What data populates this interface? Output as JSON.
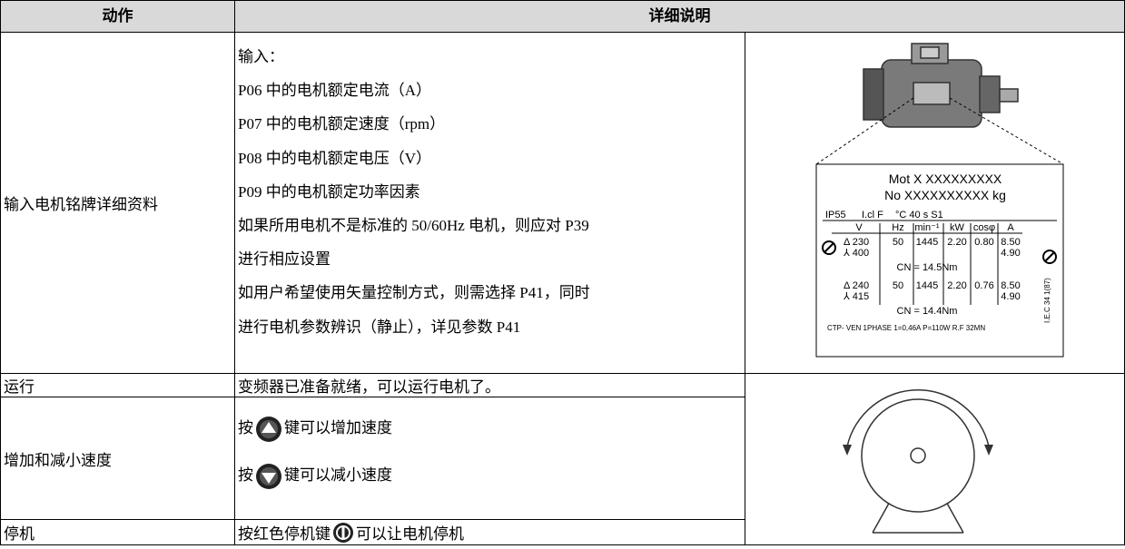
{
  "table": {
    "header": [
      "动作",
      "详细说明"
    ],
    "rows": [
      {
        "action": "输入电机铭牌详细资料",
        "details": [
          "输入：",
          "P06 中的电机额定电流（A）",
          "P07 中的电机额定速度（rpm）",
          "P08 中的电机额定电压（V）",
          "P09 中的电机额定功率因素",
          "如果所用电机不是标准的 50/60Hz 电机，则应对 P39",
          "进行相应设置",
          "如用户希望使用矢量控制方式，则需选择 P41，同时",
          "进行电机参数辨识（静止），详见参数 P41"
        ]
      },
      {
        "action": "运行",
        "details": [
          "变频器已准备就绪，可以运行电机了。"
        ]
      },
      {
        "action": "增加和减小速度",
        "details": [
          {
            "before": "按",
            "after": "键可以增加速度"
          },
          {
            "before": "按",
            "after": "键可以减小速度"
          }
        ]
      },
      {
        "action": "停机",
        "details": [
          {
            "before": "按红色停机键",
            "after": "可以让电机停机"
          }
        ]
      }
    ]
  },
  "nameplate": {
    "lines": [
      "Mot X XXXXXXXXX",
      "No XXXXXXXXXX  kg",
      "IP55",
      "I.cl F",
      "°C  40  s S1"
    ],
    "columns": [
      "V",
      "Hz",
      "min⁻¹",
      "kW",
      "cosφ",
      "A"
    ],
    "rows": [
      [
        "Δ 230",
        "50",
        "1445",
        "2.20",
        "0.80",
        "8.50"
      ],
      [
        "⅄ 400",
        "4.90"
      ],
      [
        "CN = 14.5Nm"
      ],
      [
        "Δ 240",
        "50",
        "1445",
        "2.20",
        "0.76",
        "8.50"
      ],
      [
        "⅄ 415",
        "4.90"
      ],
      [
        "CN = 14.4Nm"
      ]
    ],
    "footer": "CTP- VEN 1PHASE 1=0,46A P=110W R.F 32MN",
    "standard": "I.E.C 34 1(87)"
  }
}
